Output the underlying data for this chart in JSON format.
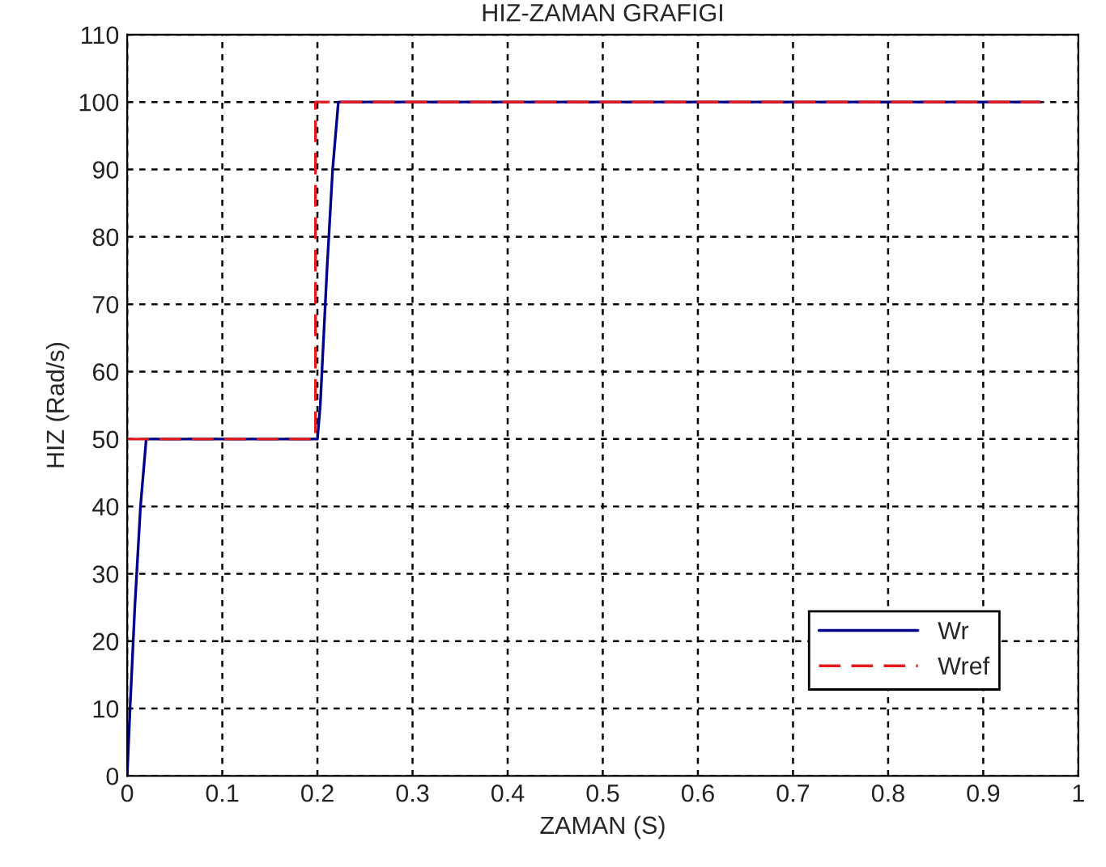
{
  "chart_data": {
    "type": "line",
    "title": "HIZ-ZAMAN GRAFIGI",
    "xlabel": "ZAMAN (S)",
    "ylabel": "HIZ (Rad/s)",
    "xlim": [
      0,
      1
    ],
    "xticks": [
      0,
      0.1,
      0.2,
      0.3,
      0.4,
      0.5,
      0.6,
      0.7,
      0.8,
      0.9,
      1
    ],
    "ylim": [
      0,
      110
    ],
    "yticks": [
      0,
      10,
      20,
      30,
      40,
      50,
      60,
      70,
      80,
      90,
      100,
      110
    ],
    "grid": true,
    "legend": "bottom right",
    "series": [
      {
        "name": "Wr",
        "color": "#00008b",
        "line_style": "solid",
        "x": [
          0,
          0.003,
          0.008,
          0.014,
          0.02,
          0.2,
          0.203,
          0.21,
          0.216,
          0.222,
          0.96
        ],
        "values": [
          0,
          10,
          25,
          40,
          50,
          50,
          55,
          75,
          90,
          100,
          100
        ]
      },
      {
        "name": "Wref",
        "color": "#e41a1c",
        "line_style": "dashed",
        "x": [
          0,
          0.198,
          0.198,
          0.96
        ],
        "values": [
          50,
          50,
          100,
          100
        ]
      }
    ]
  }
}
